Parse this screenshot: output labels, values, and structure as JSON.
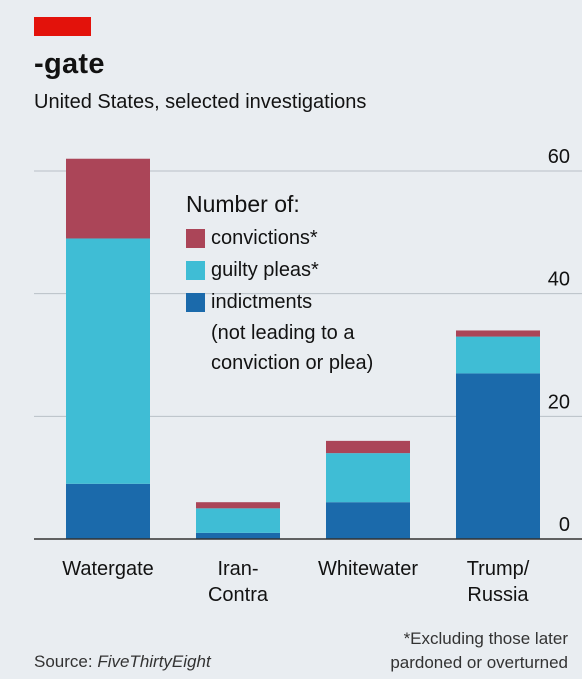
{
  "header": {
    "title": "-gate",
    "subtitle": "United States, selected investigations"
  },
  "legend": {
    "heading": "Number of:",
    "items": [
      {
        "label": "convictions*",
        "color": "#ab4558"
      },
      {
        "label": "guilty pleas*",
        "color": "#3fbdd5"
      },
      {
        "label": "indictments",
        "color": "#1b6aab"
      }
    ],
    "note_line1": "(not leading to a",
    "note_line2": "conviction or plea)"
  },
  "footer": {
    "source_prefix": "Source: ",
    "source_name": "FiveThirtyEight",
    "footnote_line1": "*Excluding those later",
    "footnote_line2": "pardoned or overturned"
  },
  "colors": {
    "background": "#e9edf1",
    "accent_red": "#e3120b",
    "grid": "#b9c0c6"
  },
  "chart_data": {
    "type": "bar",
    "stacked": true,
    "categories": [
      [
        "Watergate"
      ],
      [
        "Iran-",
        "Contra"
      ],
      [
        "Whitewater"
      ],
      [
        "Trump/",
        "Russia"
      ]
    ],
    "series": [
      {
        "name": "indictments",
        "color": "#1b6aab",
        "values": [
          9,
          1,
          6,
          27
        ]
      },
      {
        "name": "guilty pleas",
        "color": "#3fbdd5",
        "values": [
          40,
          4,
          8,
          6
        ]
      },
      {
        "name": "convictions",
        "color": "#ab4558",
        "values": [
          13,
          1,
          2,
          1
        ]
      }
    ],
    "ylim": [
      0,
      60
    ],
    "yticks": [
      0,
      20,
      40,
      60
    ],
    "ytick_labels": [
      "0",
      "20",
      "40",
      "60"
    ],
    "axis_side": "right",
    "grid": true
  }
}
